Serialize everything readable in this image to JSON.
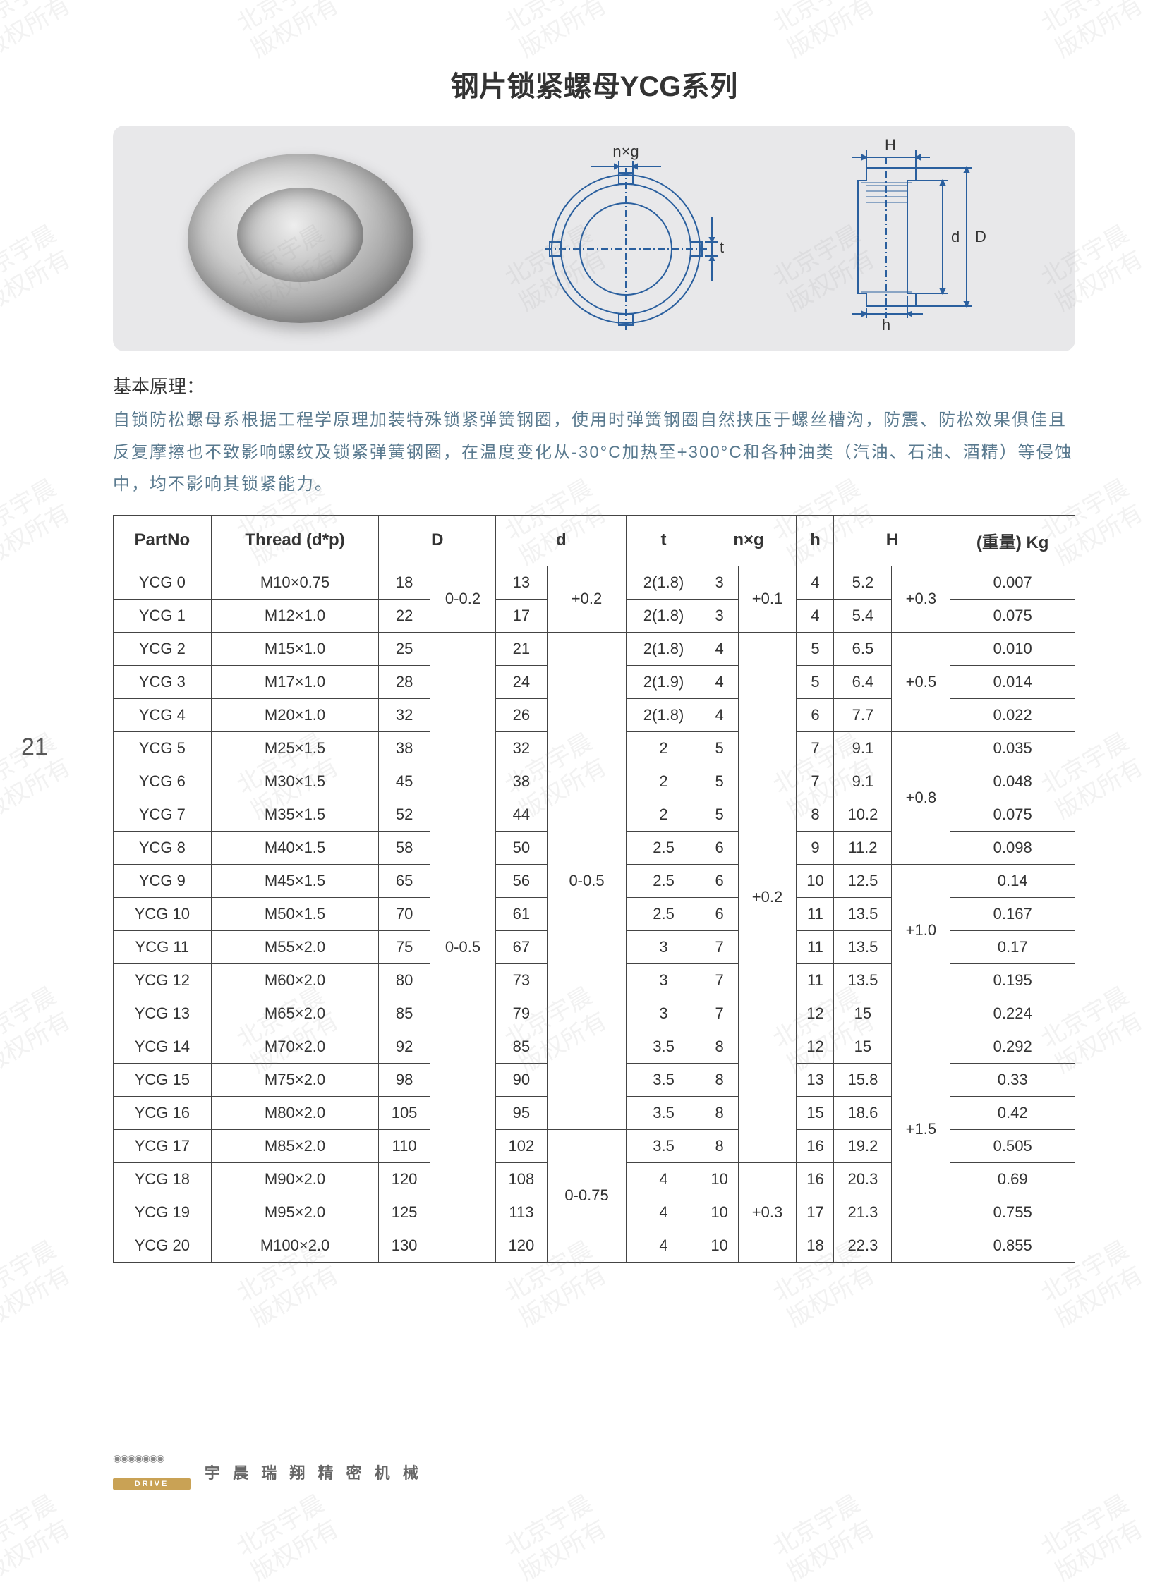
{
  "page_number": "21",
  "title": "钢片锁紧螺母YCG系列",
  "diagram_labels": {
    "nxg": "n×g",
    "t": "t",
    "H": "H",
    "D_big": "D",
    "d_small": "d",
    "h": "h"
  },
  "principle_label": "基本原理：",
  "principle_text": "自锁防松螺母系根据工程学原理加装特殊锁紧弹簧钢圈，使用时弹簧钢圈自然挟压于螺丝槽沟，防震、防松效果俱佳且反复摩擦也不致影响螺纹及锁紧弹簧钢圈，在温度变化从-30°C加热至+300°C和各种油类（汽油、石油、酒精）等侵蚀中，均不影响其锁紧能力。",
  "table": {
    "headers": [
      "PartNo",
      "Thread (d*p)",
      "D",
      "d",
      "t",
      "n×g",
      "h",
      "H",
      "(重量) Kg"
    ],
    "col_widths_pct": [
      10,
      12,
      6,
      7,
      6,
      7,
      8,
      7,
      7,
      7,
      6,
      7,
      10
    ],
    "D_tol_group1": "0-0.2",
    "D_tol_group2": "0-0.5",
    "d_tol_group1": "+0.2",
    "d_tol_group2": "0-0.5",
    "d_tol_group3": "0-0.75",
    "nxg_tol_group1": "+0.1",
    "nxg_tol_group2": "+0.2",
    "nxg_tol_group3": "+0.3",
    "H_tol_group1": "+0.3",
    "H_tol_group2": "+0.5",
    "H_tol_group3": "+0.8",
    "H_tol_group4": "+1.0",
    "H_tol_group5": "+1.5",
    "rows": [
      {
        "pn": "YCG 0",
        "th": "M10×0.75",
        "D": "18",
        "d": "13",
        "t": "2(1.8)",
        "n": "3",
        "h": "4",
        "H": "5.2",
        "kg": "0.007"
      },
      {
        "pn": "YCG 1",
        "th": "M12×1.0",
        "D": "22",
        "d": "17",
        "t": "2(1.8)",
        "n": "3",
        "h": "4",
        "H": "5.4",
        "kg": "0.075"
      },
      {
        "pn": "YCG 2",
        "th": "M15×1.0",
        "D": "25",
        "d": "21",
        "t": "2(1.8)",
        "n": "4",
        "h": "5",
        "H": "6.5",
        "kg": "0.010"
      },
      {
        "pn": "YCG 3",
        "th": "M17×1.0",
        "D": "28",
        "d": "24",
        "t": "2(1.9)",
        "n": "4",
        "h": "5",
        "H": "6.4",
        "kg": "0.014"
      },
      {
        "pn": "YCG 4",
        "th": "M20×1.0",
        "D": "32",
        "d": "26",
        "t": "2(1.8)",
        "n": "4",
        "h": "6",
        "H": "7.7",
        "kg": "0.022"
      },
      {
        "pn": "YCG 5",
        "th": "M25×1.5",
        "D": "38",
        "d": "32",
        "t": "2",
        "n": "5",
        "h": "7",
        "H": "9.1",
        "kg": "0.035"
      },
      {
        "pn": "YCG 6",
        "th": "M30×1.5",
        "D": "45",
        "d": "38",
        "t": "2",
        "n": "5",
        "h": "7",
        "H": "9.1",
        "kg": "0.048"
      },
      {
        "pn": "YCG 7",
        "th": "M35×1.5",
        "D": "52",
        "d": "44",
        "t": "2",
        "n": "5",
        "h": "8",
        "H": "10.2",
        "kg": "0.075"
      },
      {
        "pn": "YCG 8",
        "th": "M40×1.5",
        "D": "58",
        "d": "50",
        "t": "2.5",
        "n": "6",
        "h": "9",
        "H": "11.2",
        "kg": "0.098"
      },
      {
        "pn": "YCG 9",
        "th": "M45×1.5",
        "D": "65",
        "d": "56",
        "t": "2.5",
        "n": "6",
        "h": "10",
        "H": "12.5",
        "kg": "0.14"
      },
      {
        "pn": "YCG 10",
        "th": "M50×1.5",
        "D": "70",
        "d": "61",
        "t": "2.5",
        "n": "6",
        "h": "11",
        "H": "13.5",
        "kg": "0.167"
      },
      {
        "pn": "YCG 11",
        "th": "M55×2.0",
        "D": "75",
        "d": "67",
        "t": "3",
        "n": "7",
        "h": "11",
        "H": "13.5",
        "kg": "0.17"
      },
      {
        "pn": "YCG 12",
        "th": "M60×2.0",
        "D": "80",
        "d": "73",
        "t": "3",
        "n": "7",
        "h": "11",
        "H": "13.5",
        "kg": "0.195"
      },
      {
        "pn": "YCG 13",
        "th": "M65×2.0",
        "D": "85",
        "d": "79",
        "t": "3",
        "n": "7",
        "h": "12",
        "H": "15",
        "kg": "0.224"
      },
      {
        "pn": "YCG 14",
        "th": "M70×2.0",
        "D": "92",
        "d": "85",
        "t": "3.5",
        "n": "8",
        "h": "12",
        "H": "15",
        "kg": "0.292"
      },
      {
        "pn": "YCG 15",
        "th": "M75×2.0",
        "D": "98",
        "d": "90",
        "t": "3.5",
        "n": "8",
        "h": "13",
        "H": "15.8",
        "kg": "0.33"
      },
      {
        "pn": "YCG 16",
        "th": "M80×2.0",
        "D": "105",
        "d": "95",
        "t": "3.5",
        "n": "8",
        "h": "15",
        "H": "18.6",
        "kg": "0.42"
      },
      {
        "pn": "YCG 17",
        "th": "M85×2.0",
        "D": "110",
        "d": "102",
        "t": "3.5",
        "n": "8",
        "h": "16",
        "H": "19.2",
        "kg": "0.505"
      },
      {
        "pn": "YCG 18",
        "th": "M90×2.0",
        "D": "120",
        "d": "108",
        "t": "4",
        "n": "10",
        "h": "16",
        "H": "20.3",
        "kg": "0.69"
      },
      {
        "pn": "YCG 19",
        "th": "M95×2.0",
        "D": "125",
        "d": "113",
        "t": "4",
        "n": "10",
        "h": "17",
        "H": "21.3",
        "kg": "0.755"
      },
      {
        "pn": "YCG 20",
        "th": "M100×2.0",
        "D": "130",
        "d": "120",
        "t": "4",
        "n": "10",
        "h": "18",
        "H": "22.3",
        "kg": "0.855"
      }
    ]
  },
  "footer": {
    "brand": "DRIVE",
    "company": "宇 晨 瑞 翔 精 密 机 械"
  },
  "watermark_text": "北京宇晨\n版权所有",
  "colors": {
    "text": "#333333",
    "subtext": "#5a7a8f",
    "diagram_bg": "#e8e8ea",
    "outline_blue": "#2a5f9e",
    "border": "#444444",
    "logo_gold": "#c9a255"
  }
}
